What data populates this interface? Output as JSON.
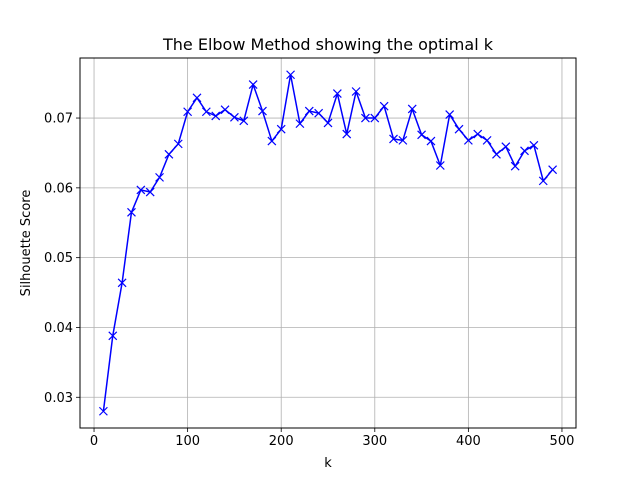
{
  "chart_data": {
    "type": "line",
    "title": "The Elbow Method showing the optimal k",
    "xlabel": "k",
    "ylabel": "Silhouette Score",
    "xlim": [
      -15,
      515
    ],
    "ylim": [
      0.0256,
      0.0786
    ],
    "x_ticks": [
      0,
      100,
      200,
      300,
      400,
      500
    ],
    "x_tick_labels": [
      "0",
      "100",
      "200",
      "300",
      "400",
      "500"
    ],
    "y_ticks": [
      0.03,
      0.04,
      0.05,
      0.06,
      0.07
    ],
    "y_tick_labels": [
      "0.03",
      "0.04",
      "0.05",
      "0.06",
      "0.07"
    ],
    "grid": true,
    "marker": "x",
    "line_color": "#0000ff",
    "series": [
      {
        "x": [
          10,
          20,
          30,
          40,
          50,
          60,
          70,
          80,
          90,
          100,
          110,
          120,
          130,
          140,
          150,
          160,
          170,
          180,
          190,
          200,
          210,
          220,
          230,
          240,
          250,
          260,
          270,
          280,
          290,
          300,
          310,
          320,
          330,
          340,
          350,
          360,
          370,
          380,
          390,
          400,
          410,
          420,
          430,
          440,
          450,
          460,
          470,
          480,
          490
        ],
        "y": [
          0.028,
          0.0388,
          0.0464,
          0.0565,
          0.0597,
          0.0594,
          0.0615,
          0.0648,
          0.0663,
          0.0709,
          0.0729,
          0.0709,
          0.0703,
          0.0712,
          0.0701,
          0.0696,
          0.0748,
          0.071,
          0.0667,
          0.0684,
          0.0762,
          0.0692,
          0.071,
          0.0707,
          0.0693,
          0.0735,
          0.0677,
          0.0738,
          0.07,
          0.07,
          0.0717,
          0.067,
          0.0668,
          0.0713,
          0.0676,
          0.0667,
          0.0632,
          0.0705,
          0.0684,
          0.0668,
          0.0677,
          0.0668,
          0.0648,
          0.0659,
          0.0631,
          0.0653,
          0.0661,
          0.061,
          0.0626
        ]
      }
    ]
  }
}
